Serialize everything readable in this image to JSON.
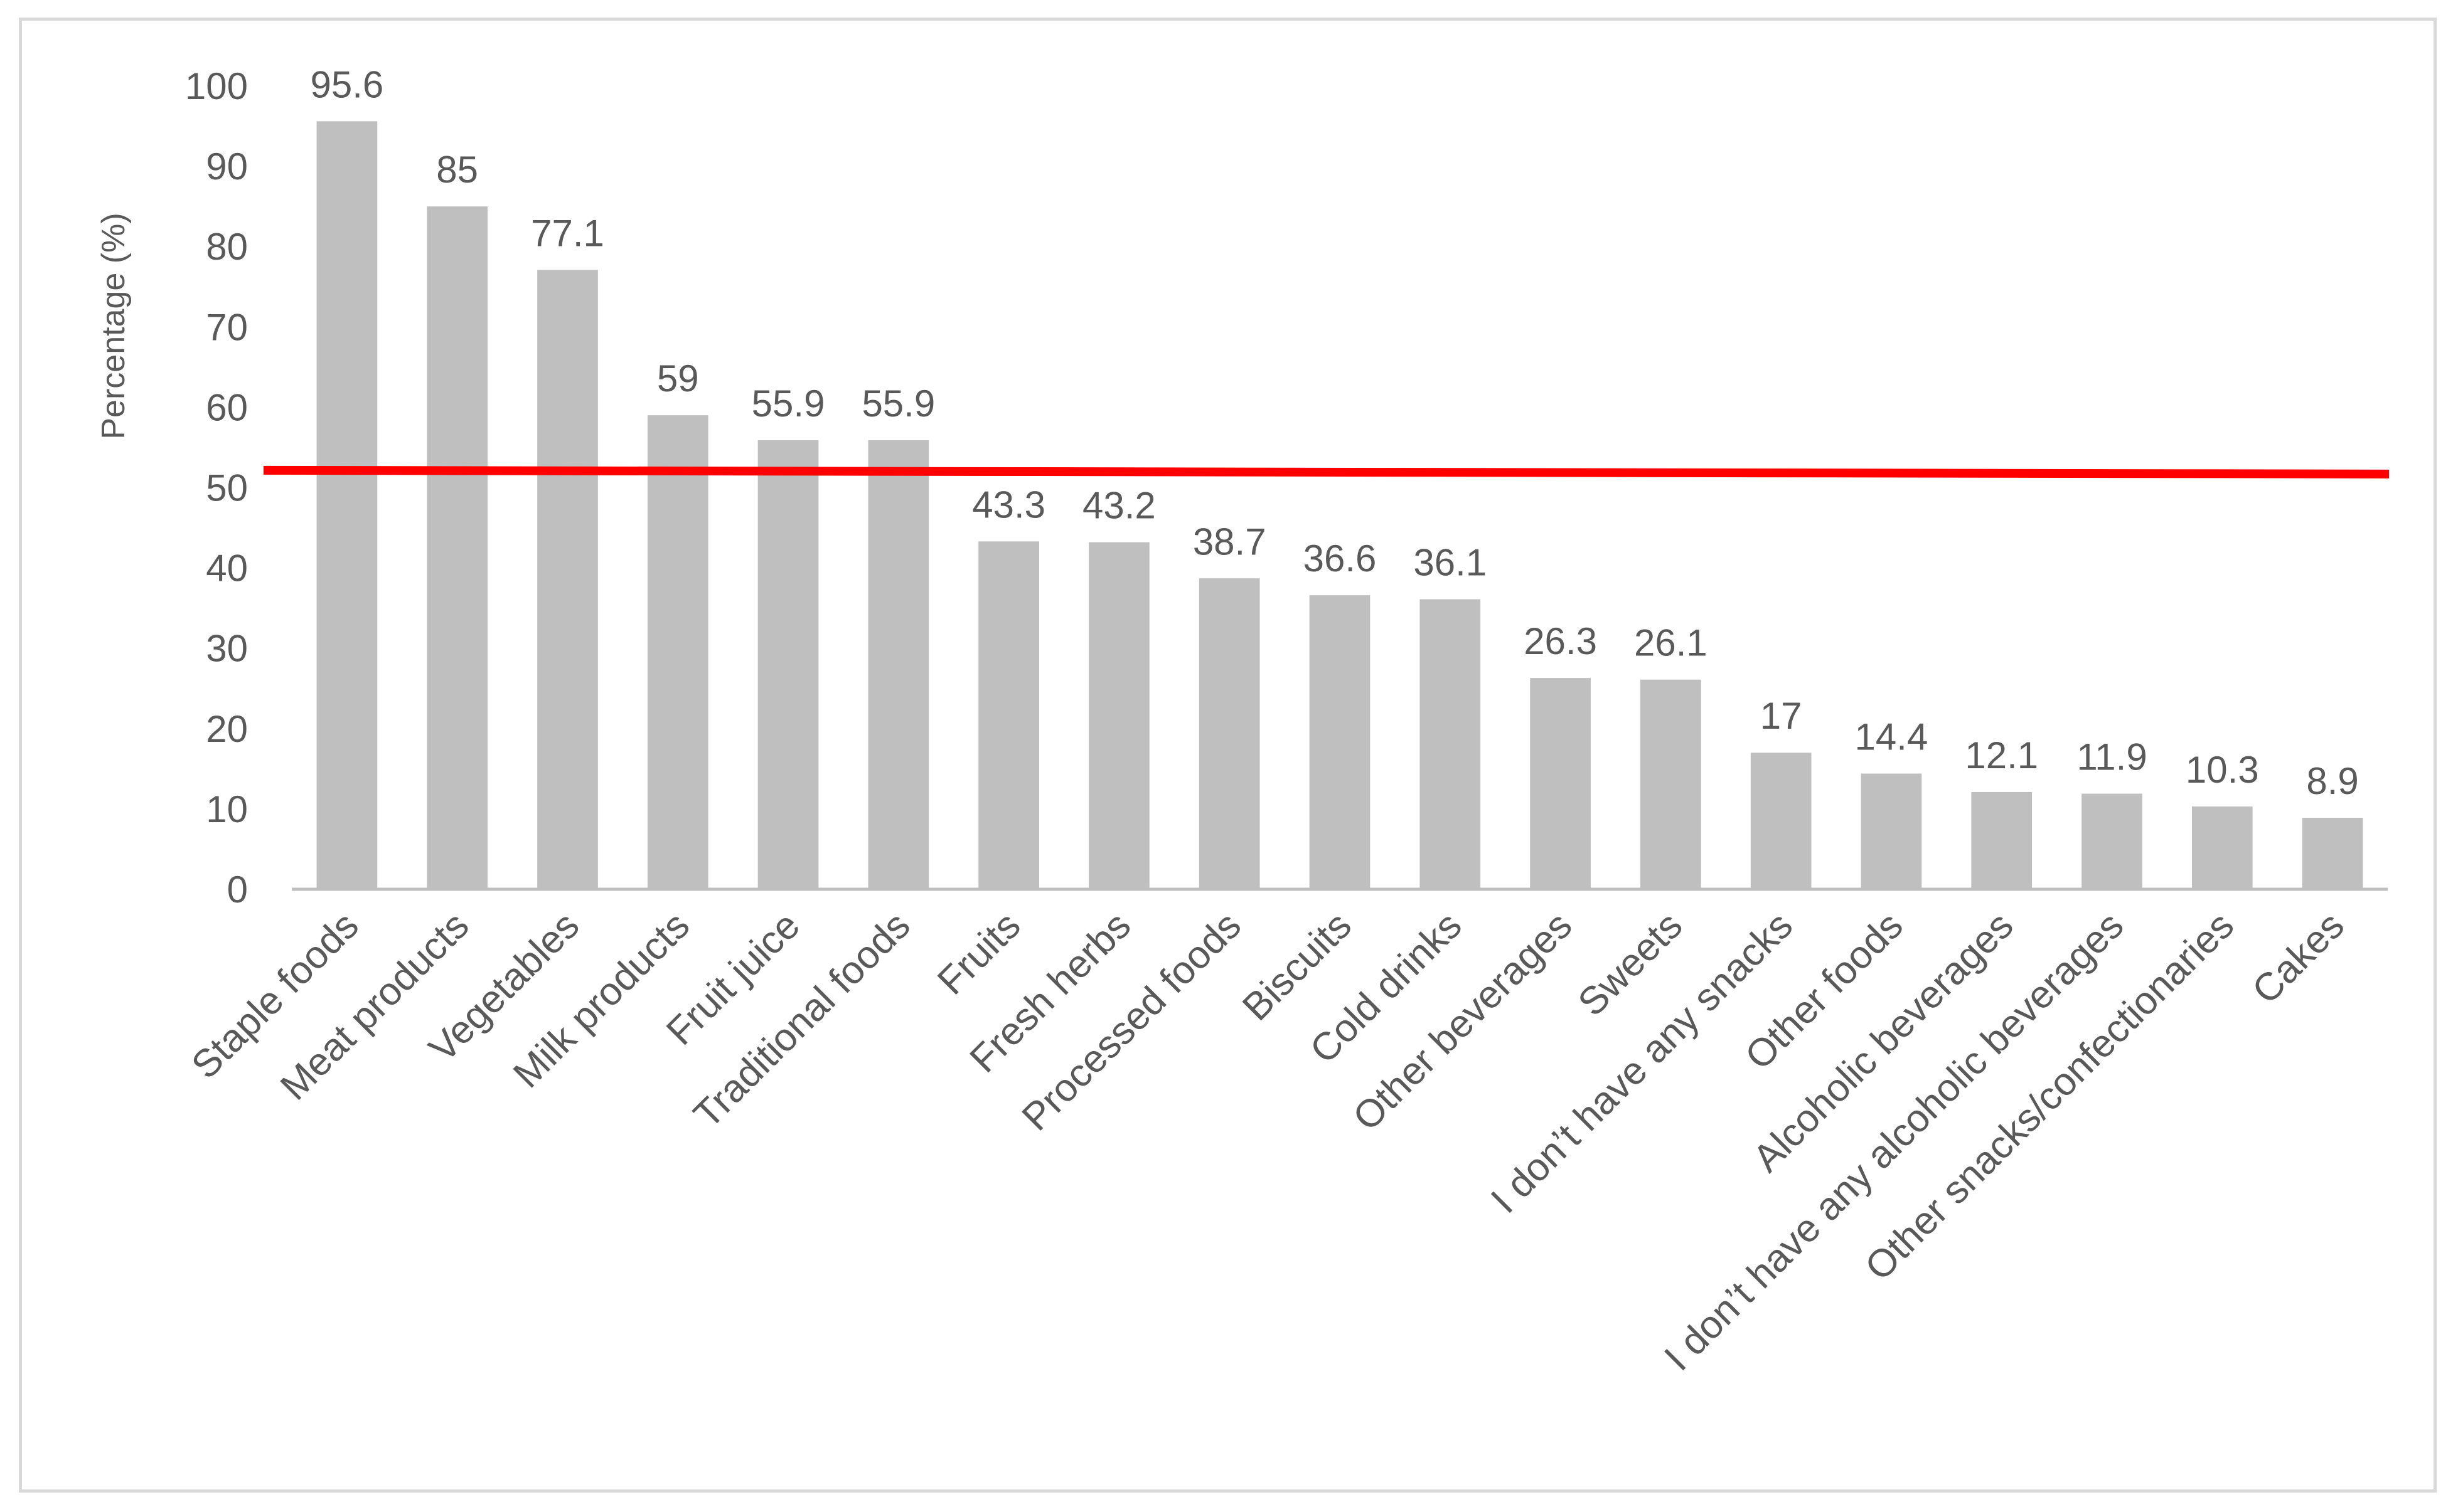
{
  "chart_data": {
    "type": "bar",
    "title": "",
    "xlabel": "",
    "ylabel": "Percentage (%)",
    "ylim": [
      0,
      100
    ],
    "yticks": [
      0,
      10,
      20,
      30,
      40,
      50,
      60,
      70,
      80,
      90,
      100
    ],
    "grid": false,
    "categories": [
      "Staple foods",
      "Meat products",
      "Vegetables",
      "Milk products",
      "Fruit juice",
      "Traditional foods",
      "Fruits",
      "Fresh herbs",
      "Processed foods",
      "Biscuits",
      "Cold drinks",
      "Other beverages",
      "Sweets",
      "I don’t have any snacks",
      "Other foods",
      "Alcoholic beverages",
      "I don’t have any alcoholic beverages",
      "Other snacks/confectionaries",
      "Cakes"
    ],
    "values": [
      95.6,
      85,
      77.1,
      59,
      55.9,
      55.9,
      43.3,
      43.2,
      38.7,
      36.6,
      36.1,
      26.3,
      26.1,
      17,
      14.4,
      12.1,
      11.9,
      10.3,
      8.9
    ],
    "data_labels": [
      "95.6",
      "85",
      "77.1",
      "59",
      "55.9",
      "55.9",
      "43.3",
      "43.2",
      "38.7",
      "36.6",
      "36.1",
      "26.3",
      "26.1",
      "17",
      "14.4",
      "12.1",
      "11.9",
      "10.3",
      "8.9"
    ],
    "reference_line": {
      "value": 52,
      "color": "#ff0000"
    },
    "bar_color": "#bfbfbf",
    "axis_color": "#bfbfbf",
    "text_color": "#595959"
  }
}
